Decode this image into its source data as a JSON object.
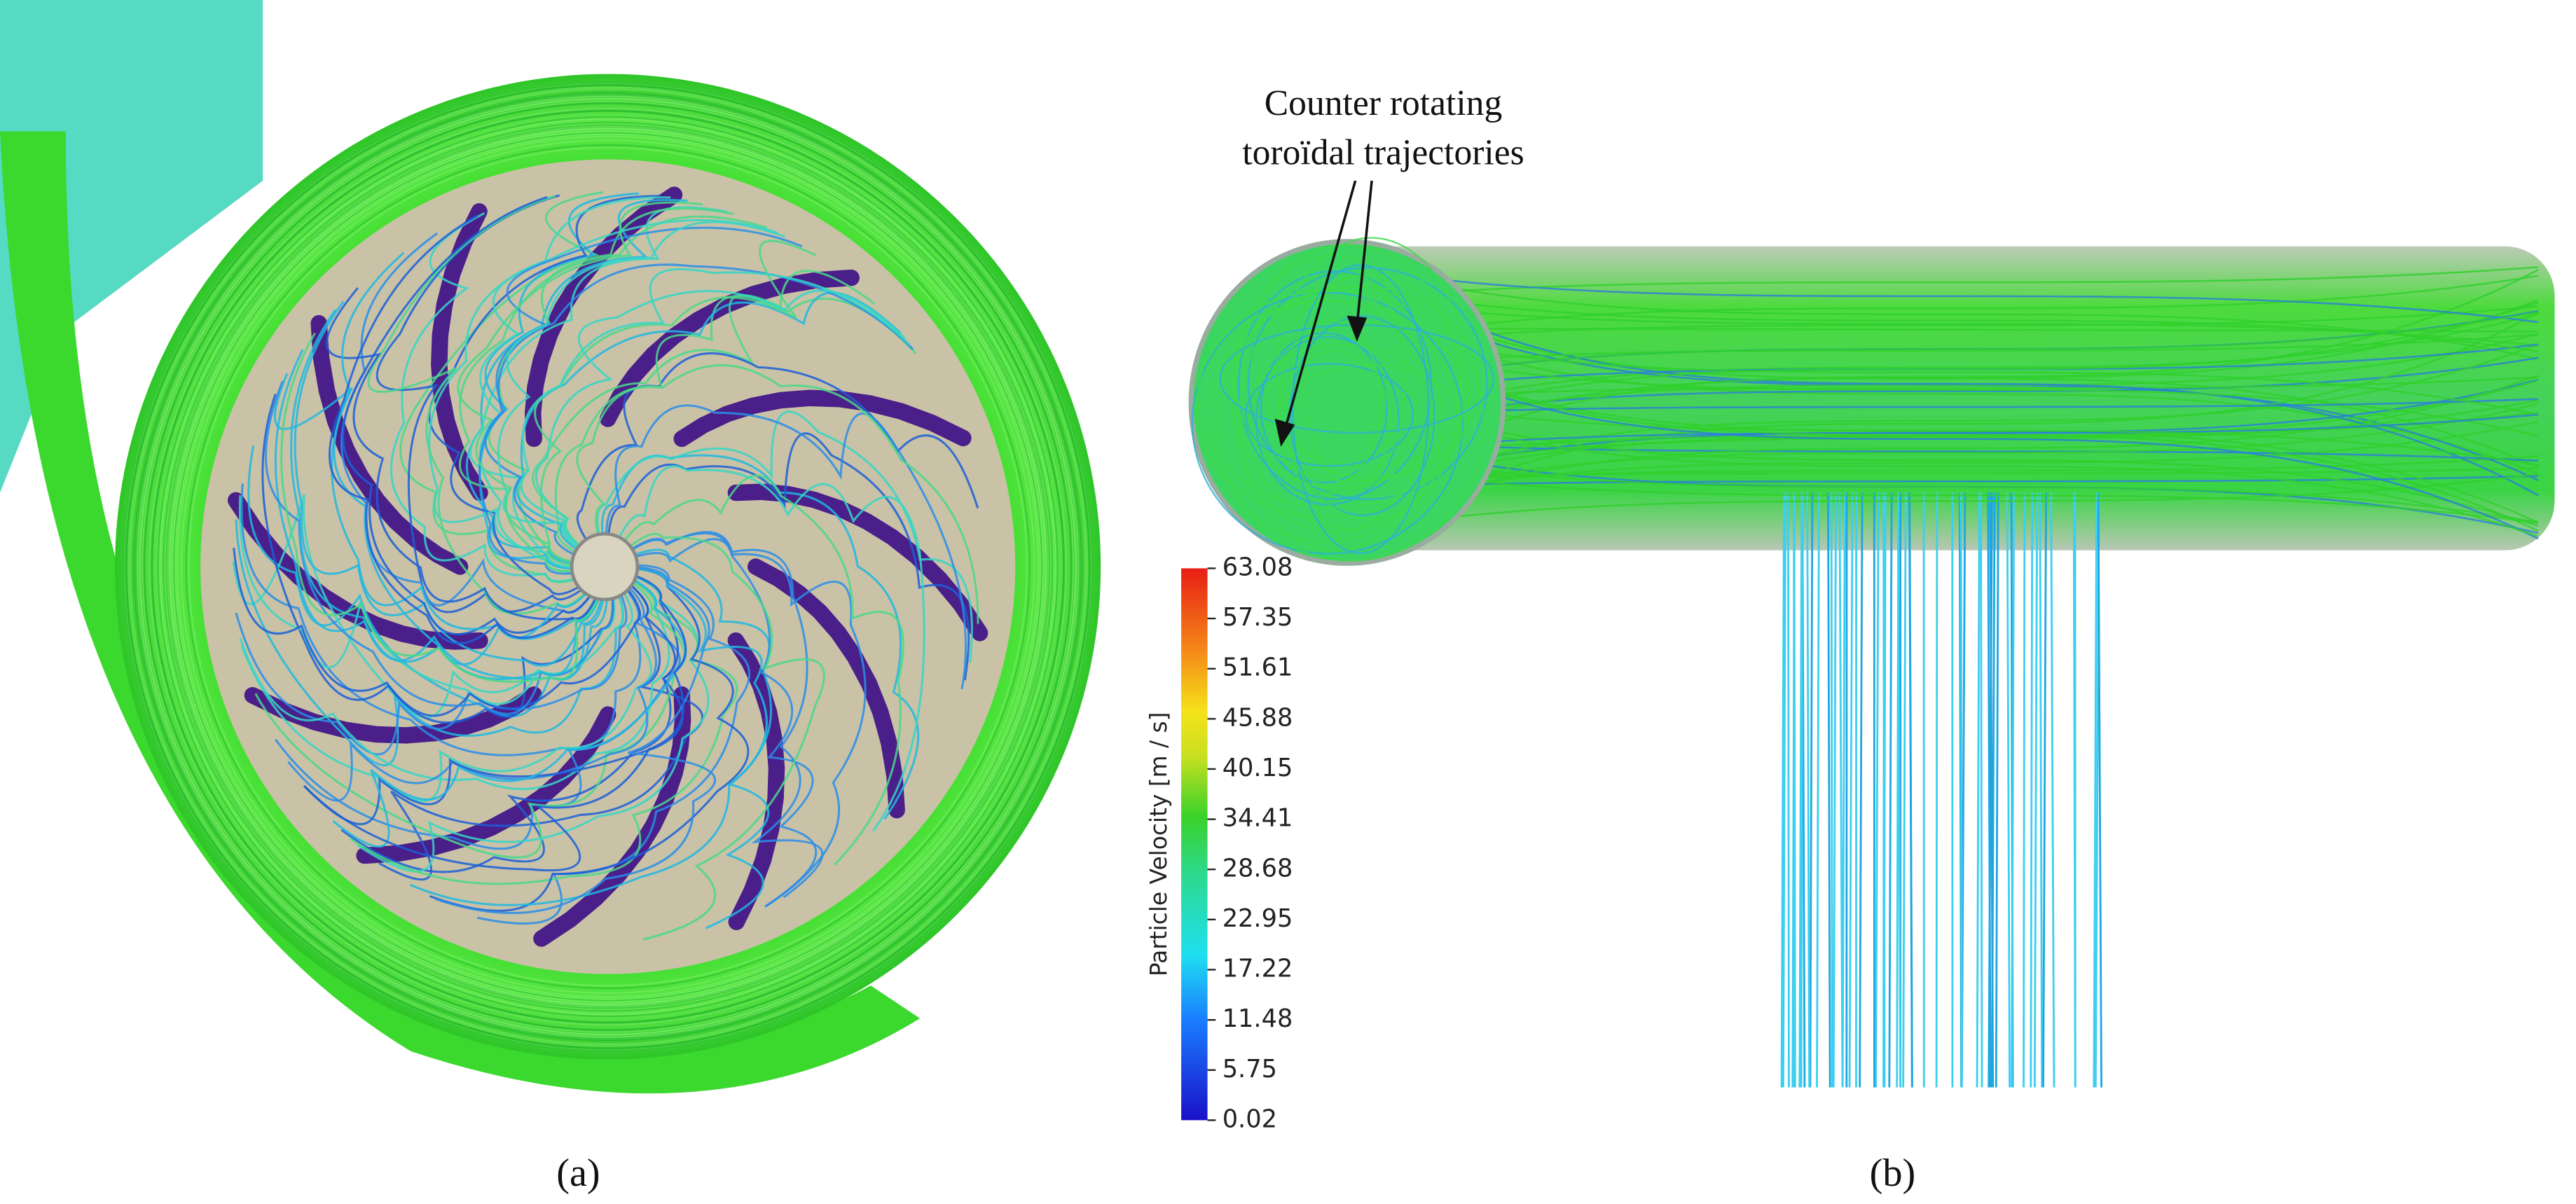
{
  "figure": {
    "annotation": {
      "line1": "Counter rotating",
      "line2": "toroïdal trajectories"
    },
    "colorbar": {
      "label": "Particle Velocity [m / s]",
      "ticks": [
        63.08,
        57.35,
        51.61,
        45.88,
        40.15,
        34.41,
        28.68,
        22.95,
        17.22,
        11.48,
        5.75,
        0.02
      ]
    },
    "panels": [
      {
        "label": "(a)"
      },
      {
        "label": "(b)"
      }
    ]
  }
}
